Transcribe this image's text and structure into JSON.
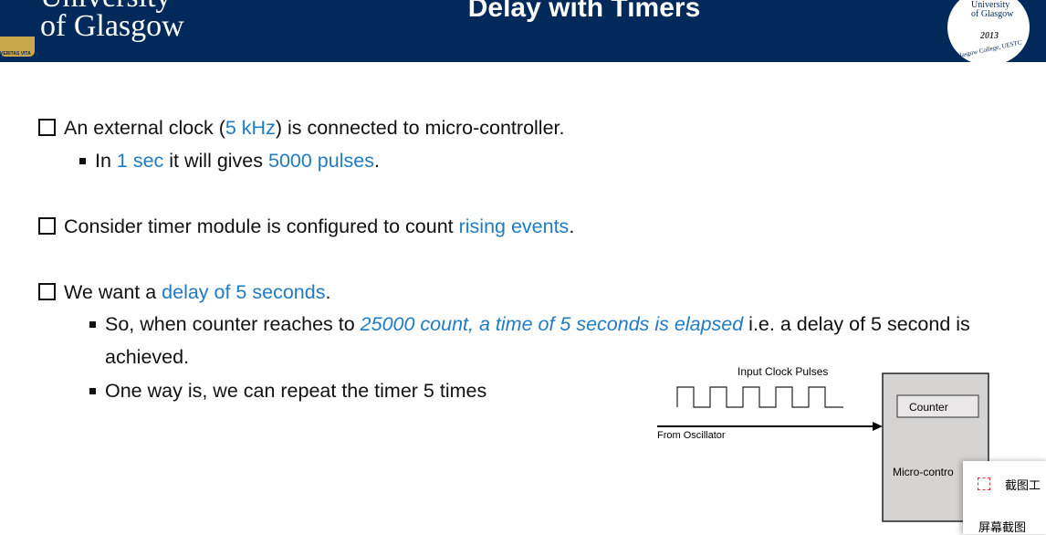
{
  "header": {
    "logo_line1": "University",
    "logo_line2": "of Glasgow",
    "logo_motto": "VERITAS VITA",
    "title": "Delay with Timers",
    "badge": {
      "line1": "University",
      "line2": "of Glasgow",
      "year": "2013",
      "ring": "Glasgow College, UESTC"
    }
  },
  "bullets": [
    {
      "segments": [
        {
          "text": "An external clock ("
        },
        {
          "text": "5 kHz",
          "emphasis": "blue"
        },
        {
          "text": ") is connected to micro-controller."
        }
      ],
      "sub": [
        {
          "segments": [
            {
              "text": "In "
            },
            {
              "text": "1 sec",
              "emphasis": "blue"
            },
            {
              "text": " it will gives "
            },
            {
              "text": "5000 pulses",
              "emphasis": "blue"
            },
            {
              "text": "."
            }
          ]
        }
      ]
    },
    {
      "segments": [
        {
          "text": "Consider timer module is configured to count "
        },
        {
          "text": "rising events",
          "emphasis": "blue"
        },
        {
          "text": "."
        }
      ],
      "sub": []
    },
    {
      "segments": [
        {
          "text": "We want a "
        },
        {
          "text": "delay of 5 seconds",
          "emphasis": "blue"
        },
        {
          "text": "."
        }
      ],
      "sub": [
        {
          "segments": [
            {
              "text": "So, when counter reaches to "
            },
            {
              "text": "25000 count, a time of 5 seconds is elapsed",
              "emphasis": "blue-italic"
            },
            {
              "text": " i.e. a delay of 5 second is achieved."
            }
          ]
        },
        {
          "segments": [
            {
              "text": "One way is, we can repeat the timer 5 times"
            }
          ]
        }
      ]
    }
  ],
  "diagram": {
    "pulses_label": "Input Clock Pulses",
    "source_label": "From Oscillator",
    "counter_label": "Counter",
    "mcu_label": "Micro-contro"
  },
  "popup": {
    "item1": "截图工",
    "item2": "屏幕截图"
  }
}
